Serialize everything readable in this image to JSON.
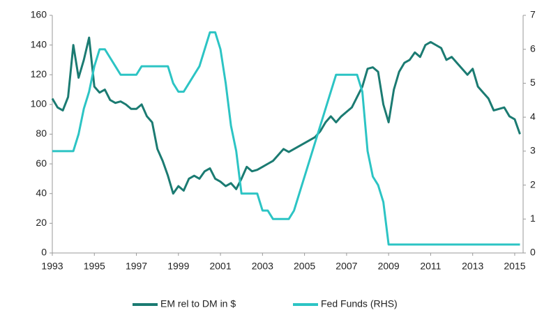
{
  "chart_data": {
    "type": "line",
    "x": [
      1993,
      1993.25,
      1993.5,
      1993.75,
      1994,
      1994.25,
      1994.5,
      1994.75,
      1995,
      1995.25,
      1995.5,
      1995.75,
      1996,
      1996.25,
      1996.5,
      1996.75,
      1997,
      1997.25,
      1997.5,
      1997.75,
      1998,
      1998.25,
      1998.5,
      1998.75,
      1999,
      1999.25,
      1999.5,
      1999.75,
      2000,
      2000.25,
      2000.5,
      2000.75,
      2001,
      2001.25,
      2001.5,
      2001.75,
      2002,
      2002.25,
      2002.5,
      2002.75,
      2003,
      2003.25,
      2003.5,
      2003.75,
      2004,
      2004.25,
      2004.5,
      2004.75,
      2005,
      2005.25,
      2005.5,
      2005.75,
      2006,
      2006.25,
      2006.5,
      2006.75,
      2007,
      2007.25,
      2007.5,
      2007.75,
      2008,
      2008.25,
      2008.5,
      2008.75,
      2009,
      2009.25,
      2009.5,
      2009.75,
      2010,
      2010.25,
      2010.5,
      2010.75,
      2011,
      2011.25,
      2011.5,
      2011.75,
      2012,
      2012.25,
      2012.5,
      2012.75,
      2013,
      2013.25,
      2013.5,
      2013.75,
      2014,
      2014.25,
      2014.5,
      2014.75,
      2015,
      2015.25
    ],
    "series": [
      {
        "name": "EM rel to DM in $",
        "color": "#1b7b72",
        "values": [
          104,
          98,
          96,
          105,
          140,
          118,
          130,
          145,
          112,
          108,
          110,
          103,
          101,
          102,
          100,
          97,
          97,
          100,
          92,
          88,
          70,
          62,
          52,
          40,
          45,
          42,
          50,
          52,
          50,
          55,
          57,
          50,
          48,
          45,
          47,
          43,
          50,
          58,
          55,
          56,
          58,
          60,
          62,
          66,
          70,
          68,
          70,
          72,
          74,
          76,
          78,
          82,
          88,
          92,
          88,
          92,
          95,
          98,
          105,
          112,
          124,
          125,
          122,
          100,
          88,
          110,
          122,
          128,
          130,
          135,
          132,
          140,
          142,
          140,
          138,
          130,
          132,
          128,
          124,
          120,
          124,
          112,
          108,
          104,
          96,
          97,
          98,
          92,
          90,
          80
        ]
      },
      {
        "name": "Fed Funds (RHS)",
        "color": "#2cc4c4",
        "axis": "y2",
        "values": [
          3,
          3,
          3,
          3,
          3,
          3.5,
          4.25,
          4.75,
          5.5,
          6,
          6,
          5.75,
          5.5,
          5.25,
          5.25,
          5.25,
          5.25,
          5.5,
          5.5,
          5.5,
          5.5,
          5.5,
          5.5,
          5,
          4.75,
          4.75,
          5,
          5.25,
          5.5,
          6,
          6.5,
          6.5,
          6,
          5,
          3.75,
          3,
          1.75,
          1.75,
          1.75,
          1.75,
          1.25,
          1.25,
          1,
          1,
          1,
          1,
          1.25,
          1.75,
          2.25,
          2.75,
          3.25,
          3.75,
          4.25,
          4.75,
          5.25,
          5.25,
          5.25,
          5.25,
          5.25,
          4.75,
          3,
          2.25,
          2,
          1.5,
          0.25,
          0.25,
          0.25,
          0.25,
          0.25,
          0.25,
          0.25,
          0.25,
          0.25,
          0.25,
          0.25,
          0.25,
          0.25,
          0.25,
          0.25,
          0.25,
          0.25,
          0.25,
          0.25,
          0.25,
          0.25,
          0.25,
          0.25,
          0.25,
          0.25,
          0.25
        ]
      }
    ],
    "xlim": [
      1993,
      2015.4
    ],
    "xticks": [
      1993,
      1995,
      1997,
      1999,
      2001,
      2003,
      2005,
      2007,
      2009,
      2011,
      2013,
      2015
    ],
    "ylim": [
      0,
      160
    ],
    "yticks": [
      0,
      20,
      40,
      60,
      80,
      100,
      120,
      140,
      160
    ],
    "y2lim": [
      0,
      7
    ],
    "y2ticks": [
      0,
      1,
      2,
      3,
      4,
      5,
      6,
      7
    ],
    "grid": false,
    "legend": "bottom"
  }
}
